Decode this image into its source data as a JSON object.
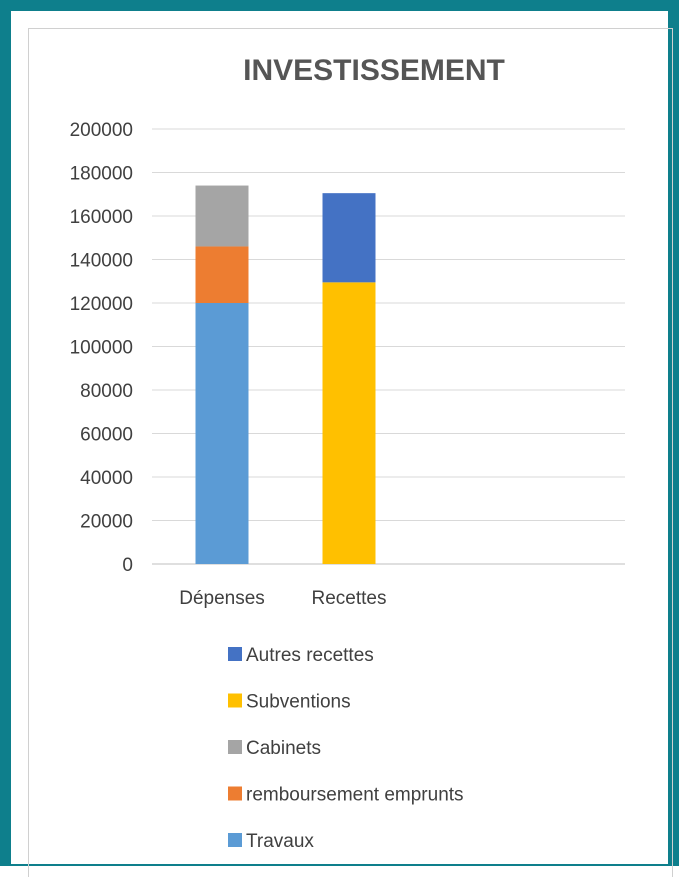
{
  "chart_data": {
    "type": "bar",
    "stacked": true,
    "title": "INVESTISSEMENT",
    "xlabel": "",
    "ylabel": "",
    "categories": [
      "Dépenses",
      "Recettes"
    ],
    "ylim": [
      0,
      200000
    ],
    "yticks": [
      0,
      20000,
      40000,
      60000,
      80000,
      100000,
      120000,
      140000,
      160000,
      180000,
      200000
    ],
    "grid": true,
    "legend_position": "bottom",
    "series": [
      {
        "name": "Travaux",
        "color": "#5b9bd5",
        "values": [
          120000,
          0
        ]
      },
      {
        "name": "remboursement emprunts",
        "color": "#ed7d31",
        "values": [
          26000,
          0
        ]
      },
      {
        "name": "Cabinets",
        "color": "#a5a5a5",
        "values": [
          28000,
          0
        ]
      },
      {
        "name": "Subventions",
        "color": "#ffc000",
        "values": [
          0,
          129500
        ]
      },
      {
        "name": "Autres recettes",
        "color": "#4472c4",
        "values": [
          0,
          41000
        ]
      }
    ],
    "legend_order": [
      "Autres recettes",
      "Subventions",
      "Cabinets",
      "remboursement emprunts",
      "Travaux"
    ]
  }
}
